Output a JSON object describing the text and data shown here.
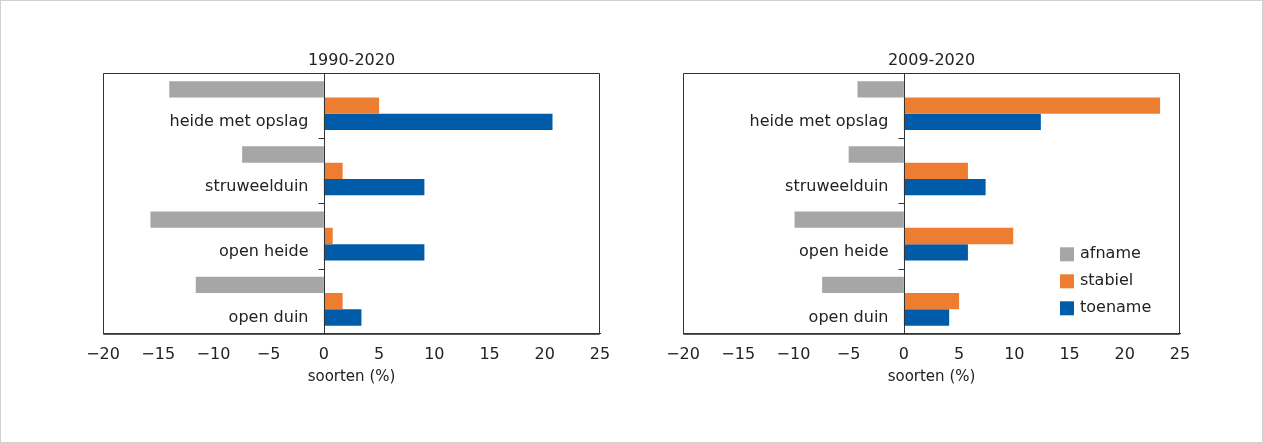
{
  "chart_data": [
    {
      "type": "bar",
      "orientation": "horizontal",
      "title": "1990-2020",
      "xlabel": "soorten (%)",
      "categories": [
        "heide met opslag",
        "struweelduin",
        "open heide",
        "open duin"
      ],
      "xlim": [
        -20,
        25
      ],
      "xticks": [
        -20,
        -15,
        -10,
        -5,
        0,
        5,
        10,
        15,
        20,
        25
      ],
      "grid": false,
      "legend": false,
      "series": [
        {
          "color": "#a6a6a6",
          "values": [
            -14.0,
            -7.4,
            -15.7,
            -11.6
          ]
        },
        {
          "color": "#ed7d31",
          "values": [
            5.0,
            1.7,
            0.8,
            1.7
          ]
        },
        {
          "color": "#005ca9",
          "values": [
            20.7,
            9.1,
            9.1,
            3.4
          ]
        }
      ]
    },
    {
      "type": "bar",
      "orientation": "horizontal",
      "title": "2009-2020",
      "xlabel": "soorten (%)",
      "categories": [
        "heide met opslag",
        "struweelduin",
        "open heide",
        "open duin"
      ],
      "xlim": [
        -20,
        25
      ],
      "xticks": [
        -20,
        -15,
        -10,
        -5,
        0,
        5,
        10,
        15,
        20,
        25
      ],
      "grid": false,
      "legend": "bottom right",
      "series": [
        {
          "name": "afname",
          "color": "#a6a6a6",
          "values": [
            -4.2,
            -5.0,
            -9.9,
            -7.4
          ]
        },
        {
          "name": "stabiel",
          "color": "#ed7d31",
          "values": [
            23.2,
            5.8,
            9.9,
            5.0
          ]
        },
        {
          "name": "toename",
          "color": "#005ca9",
          "values": [
            12.4,
            7.4,
            5.8,
            4.1
          ]
        }
      ]
    }
  ]
}
